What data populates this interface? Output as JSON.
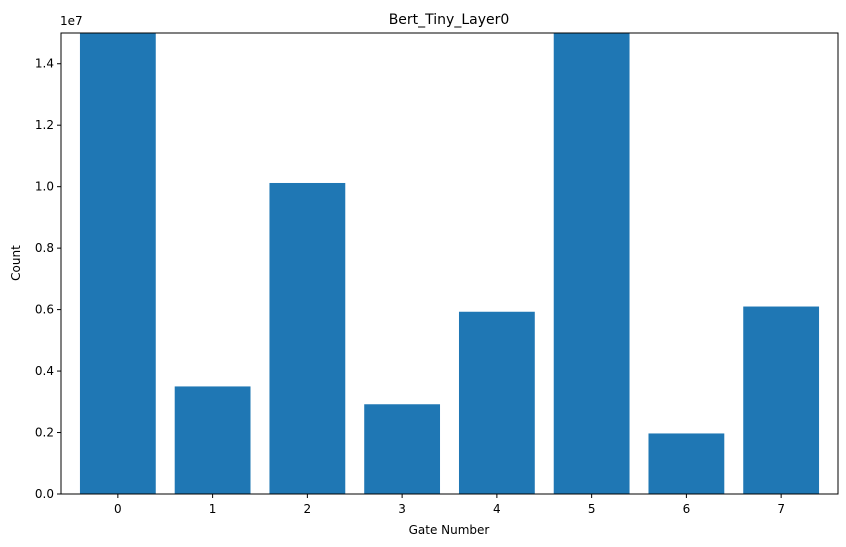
{
  "chart_data": {
    "type": "bar",
    "title": "Bert_Tiny_Layer0",
    "xlabel": "Gate Number",
    "ylabel": "Count",
    "y_offset_label": "1e7",
    "categories": [
      "0",
      "1",
      "2",
      "3",
      "4",
      "5",
      "6",
      "7"
    ],
    "values": [
      15000000,
      3500000,
      10120000,
      2920000,
      5930000,
      15000000,
      1970000,
      6100000
    ],
    "ylim": [
      0,
      15000000
    ],
    "yticks": [
      0,
      2000000,
      4000000,
      6000000,
      8000000,
      10000000,
      12000000,
      14000000
    ],
    "ytick_labels": [
      "0.0",
      "0.2",
      "0.4",
      "0.6",
      "0.8",
      "1.0",
      "1.2",
      "1.4"
    ],
    "bar_color": "#1f77b4",
    "grid": false,
    "legend": "none"
  }
}
